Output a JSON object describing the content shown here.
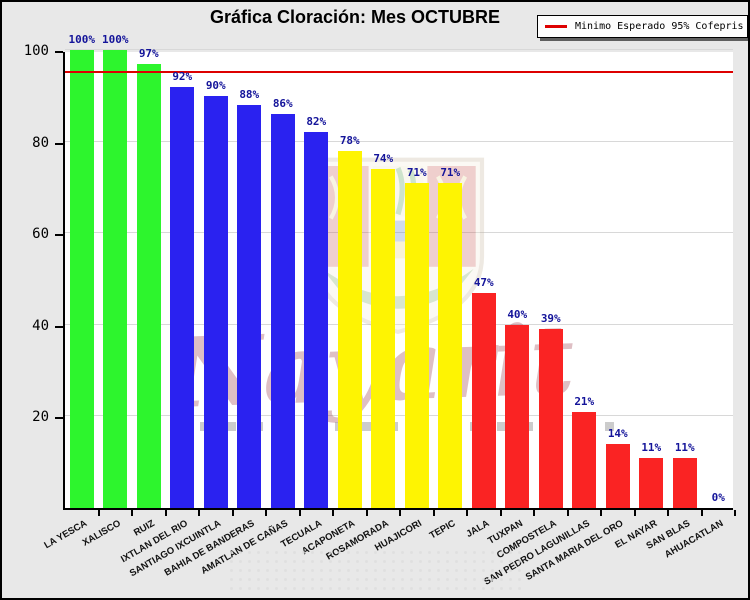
{
  "title": "Gráfica Cloración: Mes OCTUBRE",
  "legend": {
    "label": "Minimo Esperado 95% Cofepris",
    "line_color": "#dd0000"
  },
  "watermark": {
    "script_text": "Nayarit"
  },
  "colors": {
    "figure_bg": "#e8e8e8",
    "plot_bg": "#ffffff",
    "green": "#2df52d",
    "blue": "#2a22f0",
    "yellow": "#fef402",
    "red": "#fa2323",
    "threshold": "#dd0000",
    "gridline": "#d8d8d8",
    "value_label": "#14149a",
    "axis": "#000000"
  },
  "chart_data": {
    "type": "bar",
    "title": "Gráfica Cloración: Mes OCTUBRE",
    "categories": [
      "LA YESCA",
      "XALISCO",
      "RUIZ",
      "IXTLAN DEL RIO",
      "SANTIAGO IXCUINTLA",
      "BAHIA DE BANDERAS",
      "AMATLAN DE CAÑAS",
      "TECUALA",
      "ACAPONETA",
      "ROSAMORADA",
      "HUAJICORI",
      "TEPIC",
      "JALA",
      "TUXPAN",
      "COMPOSTELA",
      "SAN PEDRO LAGUNILLAS",
      "SANTA MARIA DEL ORO",
      "EL NAYAR",
      "SAN BLAS",
      "AHUACATLAN"
    ],
    "values": [
      100,
      100,
      97,
      92,
      90,
      88,
      86,
      82,
      78,
      74,
      71,
      71,
      47,
      40,
      39,
      21,
      14,
      11,
      11,
      0
    ],
    "bar_colors": [
      "#2df52d",
      "#2df52d",
      "#2df52d",
      "#2a22f0",
      "#2a22f0",
      "#2a22f0",
      "#2a22f0",
      "#2a22f0",
      "#fef402",
      "#fef402",
      "#fef402",
      "#fef402",
      "#fa2323",
      "#fa2323",
      "#fa2323",
      "#fa2323",
      "#fa2323",
      "#fa2323",
      "#fa2323",
      "#fa2323"
    ],
    "value_suffix": "%",
    "xlabel": "",
    "ylabel": "",
    "ylim": [
      0,
      100
    ],
    "y_ticks": [
      20,
      40,
      60,
      80,
      100
    ],
    "grid": true,
    "legend_position": "top-right",
    "threshold": {
      "value": 95,
      "label": "Minimo Esperado 95% Cofepris",
      "color": "#dd0000"
    }
  }
}
